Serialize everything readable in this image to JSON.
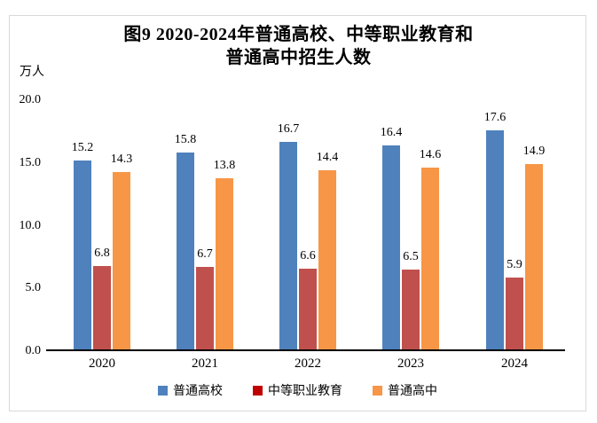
{
  "title": {
    "line1": "图9  2020-2024年普通高校、中等职业教育和",
    "line2": "普通高中招生人数"
  },
  "chart_data": {
    "type": "bar",
    "title": "图9 2020-2024年普通高校、中等职业教育和普通高中招生人数",
    "ylabel": "万人",
    "xlabel": "",
    "categories": [
      "2020",
      "2021",
      "2022",
      "2023",
      "2024"
    ],
    "series": [
      {
        "name": "普通高校",
        "color": "#4F81BD",
        "legend_marker_color": "#4F81BD",
        "values": [
          15.2,
          15.8,
          16.7,
          16.4,
          17.6
        ]
      },
      {
        "name": "中等职业教育",
        "color": "#C0504D",
        "legend_marker_color": "#C00000",
        "values": [
          6.8,
          6.7,
          6.6,
          6.5,
          5.9
        ]
      },
      {
        "name": "普通高中",
        "color": "#F79646",
        "legend_marker_color": "#F79646",
        "values": [
          14.3,
          13.8,
          14.4,
          14.6,
          14.9
        ]
      }
    ],
    "ylim": [
      0,
      20
    ],
    "ytick_labels": [
      "0.0",
      "5.0",
      "10.0",
      "15.0",
      "20.0"
    ],
    "grid": false,
    "data_labels": true,
    "legend_position": "bottom",
    "frame_border_color": "#D9D9D9",
    "axis_color": "#000000",
    "background": "#FFFFFF"
  }
}
